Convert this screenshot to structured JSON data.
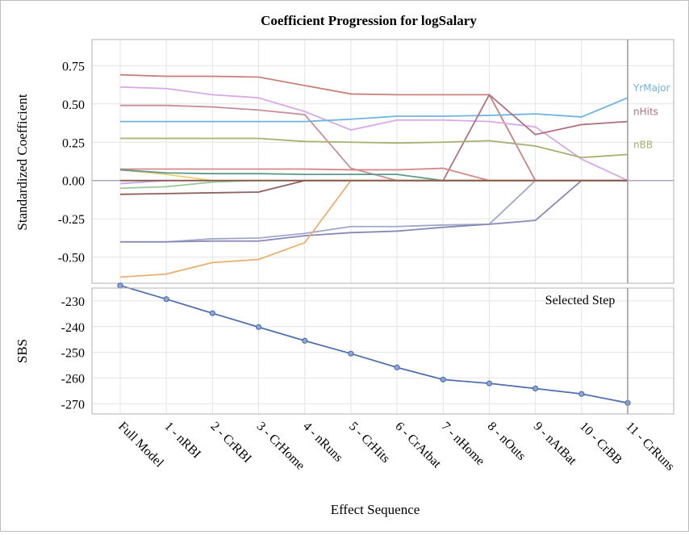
{
  "title": "Coefficient Progression for logSalary",
  "colors": {
    "grid": "#e4e4e4",
    "panel_border": "#b0b0b0",
    "zero_line": "#a8a8c0",
    "selected_line": "#9a9a9a",
    "sbs_line": "#4f6fb0"
  },
  "chart_data": [
    {
      "type": "line",
      "title": "Coefficient Progression for logSalary",
      "xlabel": "Effect Sequence",
      "ylabel": "Standardized Coefficient",
      "categories": [
        "Full Model",
        "1 - nRBI",
        "2 - CrRBI",
        "3 - CrHome",
        "4 - nRuns",
        "5 - CrHits",
        "6 - CrAtbat",
        "7 - nHome",
        "8 - nOuts",
        "9 - nAtBat",
        "10 - CrBB",
        "11 - CrRuns"
      ],
      "yticks": [
        0.75,
        0.5,
        0.25,
        0.0,
        -0.25,
        -0.5
      ],
      "ytick_labels": [
        "0.75",
        "0.50",
        "0.25",
        "0.00",
        "-0.25",
        "-0.50"
      ],
      "ylim": [
        -0.67,
        0.92
      ],
      "grid": true,
      "selected_step": "11 - CrRuns",
      "series": [
        {
          "name": "",
          "color": "#c8827c",
          "values": [
            0.69,
            0.68,
            0.68,
            0.675,
            0.62,
            0.565,
            0.56,
            0.56,
            0.56,
            0.0,
            0.0,
            0.0
          ]
        },
        {
          "name": "",
          "color": "#d8a8e8",
          "values": [
            0.61,
            0.6,
            0.56,
            0.54,
            0.45,
            0.33,
            0.395,
            0.395,
            0.385,
            0.35,
            0.14,
            0.0
          ]
        },
        {
          "name": "",
          "color": "#c89098",
          "values": [
            0.49,
            0.49,
            0.48,
            0.46,
            0.43,
            0.08,
            0.0,
            0.0,
            0.0,
            0.0,
            0.0,
            0.0
          ]
        },
        {
          "name": "YrMajor",
          "color": "#6fb3e0",
          "values": [
            0.385,
            0.385,
            0.385,
            0.385,
            0.385,
            0.4,
            0.42,
            0.42,
            0.425,
            0.435,
            0.415,
            0.54
          ]
        },
        {
          "name": "nHits",
          "color": "#b07080",
          "values": [
            0.0,
            0.0,
            0.0,
            0.0,
            0.0,
            0.0,
            0.0,
            0.0,
            0.56,
            0.3,
            0.365,
            0.385
          ]
        },
        {
          "name": "nBB",
          "color": "#a8b070",
          "values": [
            0.275,
            0.275,
            0.275,
            0.275,
            0.255,
            0.25,
            0.245,
            0.25,
            0.26,
            0.225,
            0.15,
            0.17
          ]
        },
        {
          "name": "",
          "color": "#d88888",
          "values": [
            0.075,
            0.075,
            0.075,
            0.075,
            0.075,
            0.07,
            0.07,
            0.08,
            0.0,
            0.0,
            0.0,
            0.0
          ]
        },
        {
          "name": "",
          "color": "#e8d070",
          "values": [
            0.07,
            0.04,
            0.0,
            0.0,
            0.0,
            0.0,
            0.0,
            0.0,
            0.0,
            0.0,
            0.0,
            0.0
          ]
        },
        {
          "name": "",
          "color": "#5a9a8a",
          "values": [
            0.07,
            0.05,
            0.045,
            0.045,
            0.04,
            0.04,
            0.04,
            0.0,
            0.0,
            0.0,
            0.0,
            0.0
          ]
        },
        {
          "name": "",
          "color": "#c8a8e8",
          "values": [
            -0.02,
            0.0,
            0.0,
            0.0,
            0.0,
            0.0,
            0.0,
            0.0,
            0.0,
            0.0,
            0.0,
            0.0
          ]
        },
        {
          "name": "",
          "color": "#98c898",
          "values": [
            -0.05,
            -0.04,
            -0.01,
            0.0,
            0.0,
            0.0,
            0.0,
            0.0,
            0.0,
            0.0,
            0.0,
            0.0
          ]
        },
        {
          "name": "",
          "color": "#906060",
          "values": [
            -0.09,
            -0.085,
            -0.08,
            -0.075,
            0.0,
            0.0,
            0.0,
            0.0,
            0.0,
            0.0,
            0.0,
            0.0
          ]
        },
        {
          "name": "",
          "color": "#a0a8c8",
          "values": [
            -0.4,
            -0.4,
            -0.38,
            -0.375,
            -0.345,
            -0.3,
            -0.3,
            -0.29,
            -0.285,
            0.0,
            0.0,
            0.0
          ]
        },
        {
          "name": "",
          "color": "#8888b8",
          "values": [
            -0.4,
            -0.4,
            -0.395,
            -0.395,
            -0.36,
            -0.34,
            -0.33,
            -0.305,
            -0.285,
            -0.26,
            0.0,
            0.0
          ]
        },
        {
          "name": "",
          "color": "#e8b070",
          "values": [
            -0.63,
            -0.61,
            -0.535,
            -0.515,
            -0.405,
            0.0,
            0.0,
            0.0,
            0.0,
            0.0,
            0.0,
            0.0
          ]
        },
        {
          "name": "",
          "color": "#8a5a4a",
          "values": [
            0.0,
            0.0,
            0.0,
            0.0,
            0.0,
            0.0,
            0.0,
            0.0,
            0.0,
            0.0,
            0.0,
            0.0
          ]
        }
      ]
    },
    {
      "type": "line",
      "xlabel": "Effect Sequence",
      "ylabel": "SBS",
      "categories": [
        "Full Model",
        "1 - nRBI",
        "2 - CrRBI",
        "3 - CrHome",
        "4 - nRuns",
        "5 - CrHits",
        "6 - CrAtbat",
        "7 - nHome",
        "8 - nOuts",
        "9 - nAtBat",
        "10 - CrBB",
        "11 - CrRuns"
      ],
      "yticks": [
        -230,
        -240,
        -250,
        -260,
        -270
      ],
      "ytick_labels": [
        "-230",
        "-240",
        "-250",
        "-260",
        "-270"
      ],
      "ylim": [
        -274,
        -225
      ],
      "grid": true,
      "annotation": "Selected Step",
      "series": [
        {
          "name": "",
          "values": [
            -224.0,
            -229.3,
            -234.8,
            -240.2,
            -245.5,
            -250.5,
            -255.9,
            -260.6,
            -262.1,
            -264.1,
            -266.2,
            -269.7
          ]
        }
      ]
    }
  ]
}
